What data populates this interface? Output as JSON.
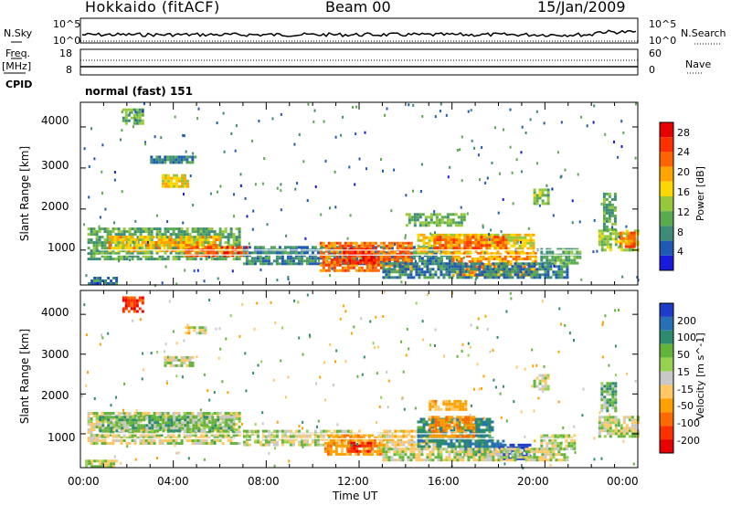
{
  "header": {
    "station": "Hokkaido (fitACF)",
    "beam": "Beam 00",
    "date": "15/Jan/2009"
  },
  "summary_panel": {
    "left_labels": [
      "N.Sky",
      "Freq.",
      "[MHz]",
      "CPID"
    ],
    "right_labels": [
      "N.Search",
      "Nave"
    ],
    "nsky_ticks": [
      "10^5",
      "10^0"
    ],
    "nsearch_ticks": [
      "10^5",
      "10^0"
    ],
    "freq_ticks": [
      "18",
      "8"
    ],
    "nave_ticks": [
      "60",
      "0"
    ],
    "cpid_text": "normal (fast) 151"
  },
  "x_axis": {
    "label": "Time UT",
    "ticks": [
      "00:00",
      "04:00",
      "08:00",
      "12:00",
      "16:00",
      "20:00",
      "00:00"
    ]
  },
  "chart_data": [
    {
      "type": "heatmap",
      "panel": "power",
      "ylabel": "Slant Range [km]",
      "yticks": [
        1000,
        2000,
        3000,
        4000
      ],
      "ylim": [
        150,
        4600
      ],
      "xlim_hours": [
        0,
        24
      ],
      "colorbar": {
        "label": "Power [dB]",
        "ticks": [
          4,
          8,
          12,
          16,
          20,
          24,
          28
        ],
        "range": [
          0,
          30
        ],
        "colors": [
          "#1a1adc",
          "#1e5ab4",
          "#3c8c78",
          "#5aaa50",
          "#96c83c",
          "#ffd700",
          "#ffa500",
          "#ff6400",
          "#ff3000",
          "#e60000"
        ]
      },
      "regions": [
        {
          "t": [
            0.3,
            6.8
          ],
          "r": [
            750,
            1550
          ],
          "v": 10
        },
        {
          "t": [
            1.2,
            6.0
          ],
          "r": [
            1000,
            1350
          ],
          "v": 18
        },
        {
          "t": [
            4.5,
            7.2
          ],
          "r": [
            850,
            1100
          ],
          "v": 24
        },
        {
          "t": [
            7.0,
            16.0
          ],
          "r": [
            650,
            1100
          ],
          "v": 7
        },
        {
          "t": [
            10.3,
            14.2
          ],
          "r": [
            500,
            1200
          ],
          "v": 22
        },
        {
          "t": [
            11.3,
            12.7
          ],
          "r": [
            650,
            1050
          ],
          "v": 27
        },
        {
          "t": [
            14.5,
            19.5
          ],
          "r": [
            900,
            1400
          ],
          "v": 17
        },
        {
          "t": [
            15.2,
            18.3
          ],
          "r": [
            1050,
            1350
          ],
          "v": 23
        },
        {
          "t": [
            16.0,
            19.6
          ],
          "r": [
            400,
            950
          ],
          "v": 20
        },
        {
          "t": [
            13.0,
            21.0
          ],
          "r": [
            350,
            700
          ],
          "v": 7
        },
        {
          "t": [
            19.8,
            21.5
          ],
          "r": [
            650,
            1050
          ],
          "v": 10
        },
        {
          "t": [
            14.0,
            16.5
          ],
          "r": [
            1600,
            1900
          ],
          "v": 11
        },
        {
          "t": [
            22.3,
            24.0
          ],
          "r": [
            1000,
            1500
          ],
          "v": 14
        },
        {
          "t": [
            22.5,
            23.0
          ],
          "r": [
            1500,
            2400
          ],
          "v": 10
        },
        {
          "t": [
            23.2,
            23.9
          ],
          "r": [
            1100,
            1450
          ],
          "v": 22
        },
        {
          "t": [
            1.8,
            2.7
          ],
          "r": [
            4050,
            4450
          ],
          "v": 11
        },
        {
          "t": [
            3.5,
            4.6
          ],
          "r": [
            2550,
            2850
          ],
          "v": 16
        },
        {
          "t": [
            3.0,
            5.0
          ],
          "r": [
            3100,
            3300
          ],
          "v": 7
        },
        {
          "t": [
            19.5,
            20.1
          ],
          "r": [
            2100,
            2500
          ],
          "v": 12
        },
        {
          "t": [
            0.2,
            1.5
          ],
          "r": [
            150,
            350
          ],
          "v": 6
        }
      ]
    },
    {
      "type": "heatmap",
      "panel": "velocity",
      "ylabel": "Slant Range [km]",
      "yticks": [
        1000,
        2000,
        3000,
        4000
      ],
      "ylim": [
        150,
        4600
      ],
      "xlim_hours": [
        0,
        24
      ],
      "colorbar": {
        "label": "Velocity [m s^-1]",
        "ticks": [
          200,
          100,
          50,
          15,
          -15,
          -50,
          -100,
          -200
        ],
        "colors": [
          "#1e3cc8",
          "#2870b4",
          "#2d8c6e",
          "#64b43c",
          "#96d250",
          "#c8c8c8",
          "#ffc864",
          "#ffa000",
          "#ff6a00",
          "#ff3000",
          "#e60000"
        ]
      },
      "regions": [
        {
          "t": [
            0.3,
            6.8
          ],
          "r": [
            750,
            1550
          ],
          "v": 0
        },
        {
          "t": [
            0.8,
            6.5
          ],
          "r": [
            1100,
            1450
          ],
          "v": 30
        },
        {
          "t": [
            7.0,
            12.0
          ],
          "r": [
            700,
            1100
          ],
          "v": 0
        },
        {
          "t": [
            10.5,
            13.0
          ],
          "r": [
            500,
            1000
          ],
          "v": -80
        },
        {
          "t": [
            11.5,
            12.5
          ],
          "r": [
            550,
            800
          ],
          "v": -180
        },
        {
          "t": [
            12.8,
            15.5
          ],
          "r": [
            650,
            1100
          ],
          "v": -30
        },
        {
          "t": [
            14.5,
            17.8
          ],
          "r": [
            700,
            1400
          ],
          "v": 80
        },
        {
          "t": [
            15.0,
            17.0
          ],
          "r": [
            950,
            1450
          ],
          "v": -90
        },
        {
          "t": [
            16.5,
            18.2
          ],
          "r": [
            500,
            850
          ],
          "v": 120
        },
        {
          "t": [
            18.0,
            19.3
          ],
          "r": [
            400,
            750
          ],
          "v": 220
        },
        {
          "t": [
            13.0,
            21.0
          ],
          "r": [
            350,
            650
          ],
          "v": 0
        },
        {
          "t": [
            19.8,
            21.3
          ],
          "r": [
            650,
            1000
          ],
          "v": 0
        },
        {
          "t": [
            15.0,
            16.6
          ],
          "r": [
            1600,
            1850
          ],
          "v": -60
        },
        {
          "t": [
            22.3,
            24.0
          ],
          "r": [
            950,
            1450
          ],
          "v": 0
        },
        {
          "t": [
            22.4,
            23.0
          ],
          "r": [
            1600,
            2300
          ],
          "v": 30
        },
        {
          "t": [
            1.8,
            2.7
          ],
          "r": [
            4050,
            4450
          ],
          "v": -180
        },
        {
          "t": [
            3.6,
            4.8
          ],
          "r": [
            2700,
            2950
          ],
          "v": 0
        },
        {
          "t": [
            4.5,
            5.4
          ],
          "r": [
            3500,
            3700
          ],
          "v": -20
        },
        {
          "t": [
            19.5,
            20.1
          ],
          "r": [
            2100,
            2500
          ],
          "v": 0
        },
        {
          "t": [
            0.2,
            1.5
          ],
          "r": [
            150,
            350
          ],
          "v": 0
        }
      ]
    }
  ]
}
